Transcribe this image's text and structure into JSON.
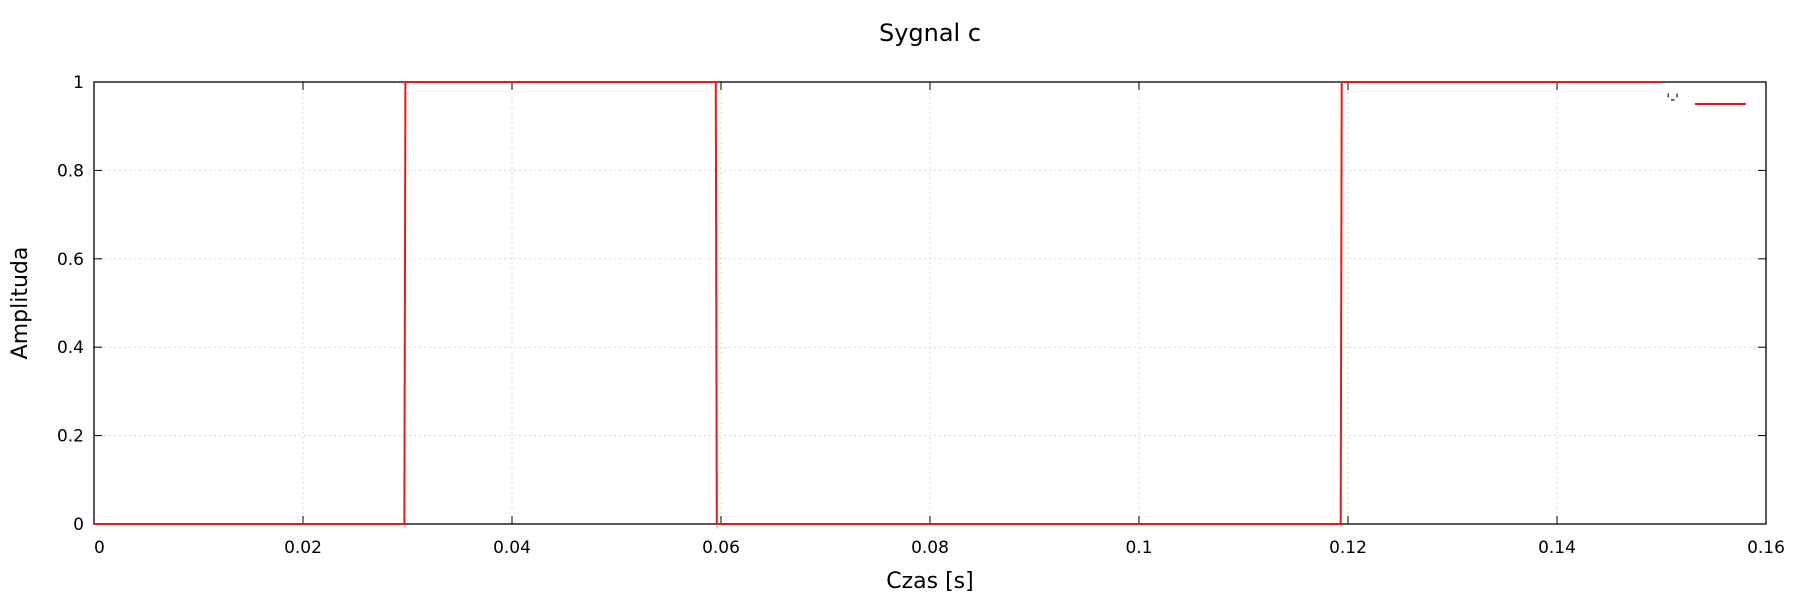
{
  "chart_data": {
    "type": "line",
    "title": "Sygnal c",
    "xlabel": "Czas [s]",
    "ylabel": "Amplituda",
    "xlim": [
      0,
      0.16
    ],
    "ylim": [
      0,
      1
    ],
    "x_ticks": [
      0,
      0.02,
      0.04,
      0.06,
      0.08,
      0.1,
      0.12,
      0.14,
      0.16
    ],
    "x_tick_labels": [
      "0",
      "0.02",
      "0.04",
      "0.06",
      "0.08",
      "0.1",
      "0.12",
      "0.14",
      "0.16"
    ],
    "y_ticks": [
      0,
      0.2,
      0.4,
      0.6,
      0.8,
      1
    ],
    "y_tick_labels": [
      "0",
      "0.2",
      "0.4",
      "0.6",
      "0.8",
      "1"
    ],
    "grid": true,
    "legend_position": "top-right",
    "series": [
      {
        "name": "'-'",
        "color": "#e31a1c",
        "x": [
          0,
          0.0297,
          0.0298,
          0.0595,
          0.0596,
          0.1193,
          0.1194,
          0.15
        ],
        "y": [
          0,
          0,
          1,
          1,
          0,
          0,
          1,
          1
        ]
      }
    ]
  }
}
